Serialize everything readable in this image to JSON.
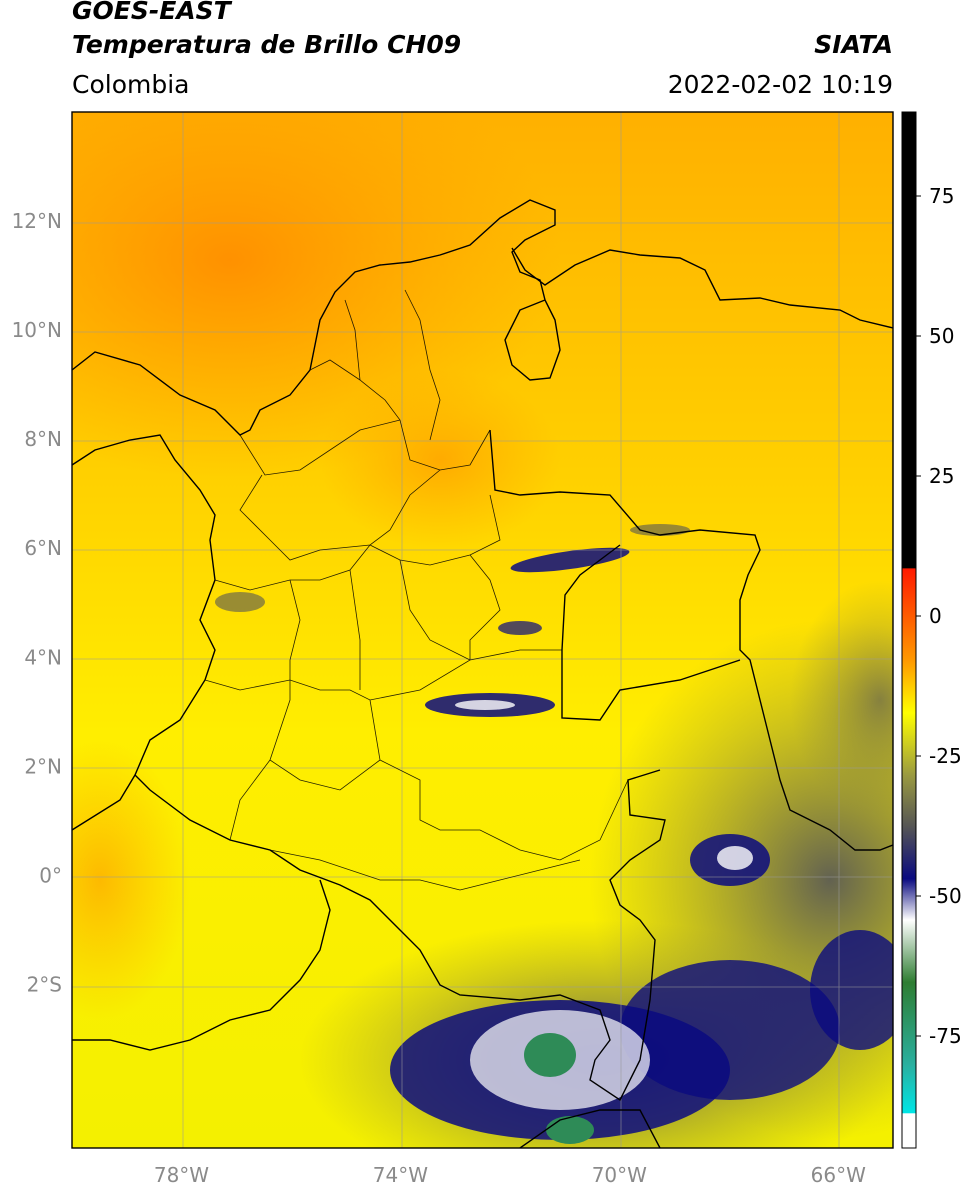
{
  "header": {
    "satellite": "GOES-EAST",
    "product": "Temperatura de Brillo CH09",
    "source": "SIATA",
    "region": "Colombia",
    "timestamp": "2022-02-02 10:19"
  },
  "map": {
    "lon_range": [
      -80,
      -65
    ],
    "lat_range": [
      -5,
      14
    ],
    "lon_ticks": [
      {
        "value": -78,
        "label": "78°W"
      },
      {
        "value": -74,
        "label": "74°W"
      },
      {
        "value": -70,
        "label": "70°W"
      },
      {
        "value": -66,
        "label": "66°W"
      }
    ],
    "lat_ticks": [
      {
        "value": 12,
        "label": "12°N"
      },
      {
        "value": 10,
        "label": "10°N"
      },
      {
        "value": 8,
        "label": "8°N"
      },
      {
        "value": 6,
        "label": "6°N"
      },
      {
        "value": 4,
        "label": "4°N"
      },
      {
        "value": 2,
        "label": "2°N"
      },
      {
        "value": 0,
        "label": "0°"
      },
      {
        "value": -2,
        "label": "2°S"
      }
    ]
  },
  "colorbar": {
    "range": [
      -95,
      90
    ],
    "ticks": [
      {
        "value": 75,
        "label": "75"
      },
      {
        "value": 50,
        "label": "50"
      },
      {
        "value": 25,
        "label": "25"
      },
      {
        "value": 0,
        "label": "0"
      },
      {
        "value": -25,
        "label": "-25"
      },
      {
        "value": -50,
        "label": "-50"
      },
      {
        "value": -75,
        "label": "-75"
      }
    ],
    "colors": {
      "black": "#000000",
      "red": "#ff1a00",
      "orange": "#ff9a00",
      "yellow": "#ffff00",
      "olive": "#9a9a40",
      "gray": "#555555",
      "navy": "#0a0a80",
      "white": "#ffffff",
      "green": "#2e7d32",
      "cyan": "#00e5e5"
    }
  }
}
